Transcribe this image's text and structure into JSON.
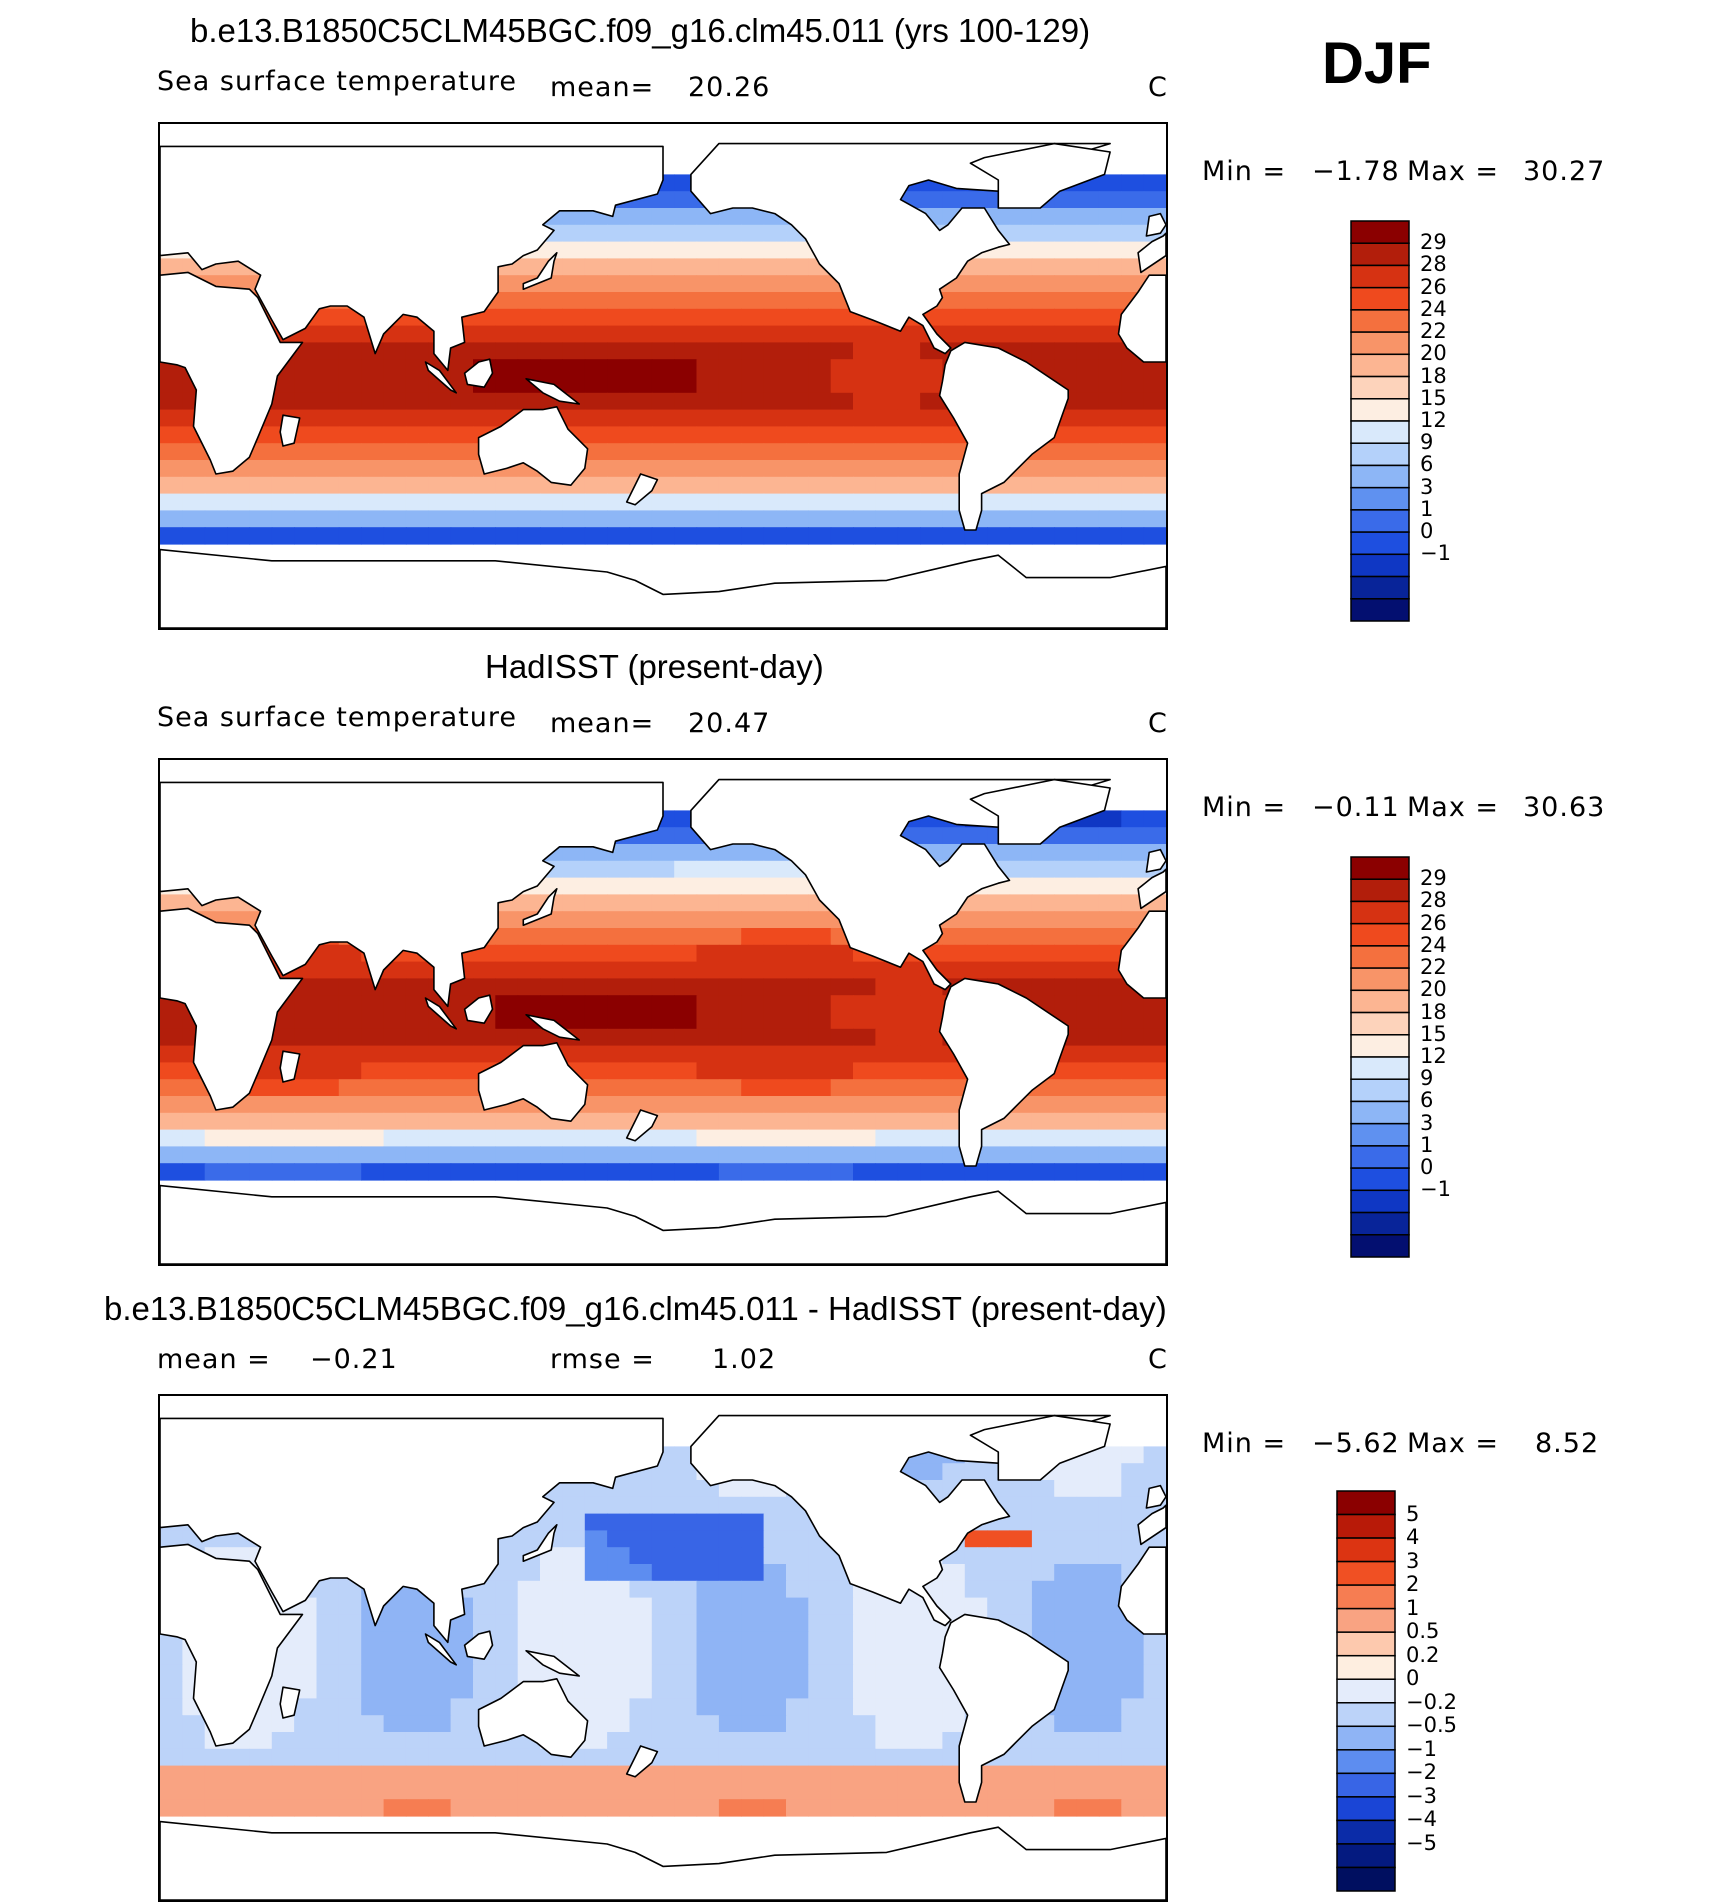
{
  "season": "DJF",
  "panels": [
    {
      "title": "b.e13.B1850C5CLM45BGC.f09_g16.clm45.011 (yrs 100-129)",
      "variable": "Sea surface temperature",
      "mean_label": "mean=",
      "mean_value": "20.26",
      "units": "C",
      "min_label": "Min =",
      "min_value": "−1.78",
      "max_label": "Max =",
      "max_value": "30.27"
    },
    {
      "title": "HadISST (present-day)",
      "variable": "Sea surface temperature",
      "mean_label": "mean=",
      "mean_value": "20.47",
      "units": "C",
      "min_label": "Min =",
      "min_value": "−0.11",
      "max_label": "Max =",
      "max_value": "30.63"
    },
    {
      "title": "b.e13.B1850C5CLM45BGC.f09_g16.clm45.011 - HadISST (present-day)",
      "mean_label": "mean =",
      "mean_value": "−0.21",
      "rmse_label": "rmse =",
      "rmse_value": "1.02",
      "units": "C",
      "min_label": "Min =",
      "min_value": "−5.62",
      "max_label": "Max =",
      "max_value": "8.52"
    }
  ],
  "chart_data": [
    {
      "type": "heatmap",
      "title": "b.e13.B1850C5CLM45BGC.f09_g16.clm45.011 (yrs 100-129)",
      "subtitle": "Sea surface temperature",
      "units": "C",
      "mean": 20.26,
      "min": -1.78,
      "max": 30.27,
      "colorbar_ticks": [
        "29",
        "28",
        "26",
        "24",
        "22",
        "20",
        "18",
        "15",
        "12",
        "9",
        "6",
        "3",
        "1",
        "0",
        "−1"
      ],
      "colorbar_colors": [
        "#8b0000",
        "#b21e0b",
        "#d63212",
        "#ef4a1e",
        "#f4703e",
        "#f89468",
        "#fcb592",
        "#fdd3bb",
        "#fdeee2",
        "#d9e9fb",
        "#b4d1fa",
        "#8db6f6",
        "#5f91f0",
        "#3a6be9",
        "#1e4fe0",
        "#0f37c4",
        "#082499",
        "#030f70"
      ],
      "field": "sea_surface_temperature",
      "source": "model"
    },
    {
      "type": "heatmap",
      "title": "HadISST (present-day)",
      "subtitle": "Sea surface temperature",
      "units": "C",
      "mean": 20.47,
      "min": -0.11,
      "max": 30.63,
      "colorbar_ticks": [
        "29",
        "28",
        "26",
        "24",
        "22",
        "20",
        "18",
        "15",
        "12",
        "9",
        "6",
        "3",
        "1",
        "0",
        "−1"
      ],
      "colorbar_colors": [
        "#8b0000",
        "#b21e0b",
        "#d63212",
        "#ef4a1e",
        "#f4703e",
        "#f89468",
        "#fcb592",
        "#fdd3bb",
        "#fdeee2",
        "#d9e9fb",
        "#b4d1fa",
        "#8db6f6",
        "#5f91f0",
        "#3a6be9",
        "#1e4fe0",
        "#0f37c4",
        "#082499",
        "#030f70"
      ],
      "field": "sea_surface_temperature",
      "source": "observations"
    },
    {
      "type": "heatmap",
      "title": "b.e13.B1850C5CLM45BGC.f09_g16.clm45.011 - HadISST (present-day)",
      "units": "C",
      "mean": -0.21,
      "rmse": 1.02,
      "min": -5.62,
      "max": 8.52,
      "colorbar_ticks": [
        "5",
        "4",
        "3",
        "2",
        "1",
        "0.5",
        "0.2",
        "0",
        "−0.2",
        "−0.5",
        "−1",
        "−2",
        "−3",
        "−4",
        "−5"
      ],
      "colorbar_colors": [
        "#8b0000",
        "#b81a08",
        "#dc3412",
        "#f05023",
        "#f67d52",
        "#f9a382",
        "#fdc9ae",
        "#feeee0",
        "#e4ecfb",
        "#bcd3f9",
        "#8fb4f5",
        "#5d8df0",
        "#3865e6",
        "#1a45d6",
        "#0b2ca8",
        "#041a80",
        "#000f60"
      ],
      "field": "sea_surface_temperature_difference",
      "source": "model minus observations"
    }
  ]
}
